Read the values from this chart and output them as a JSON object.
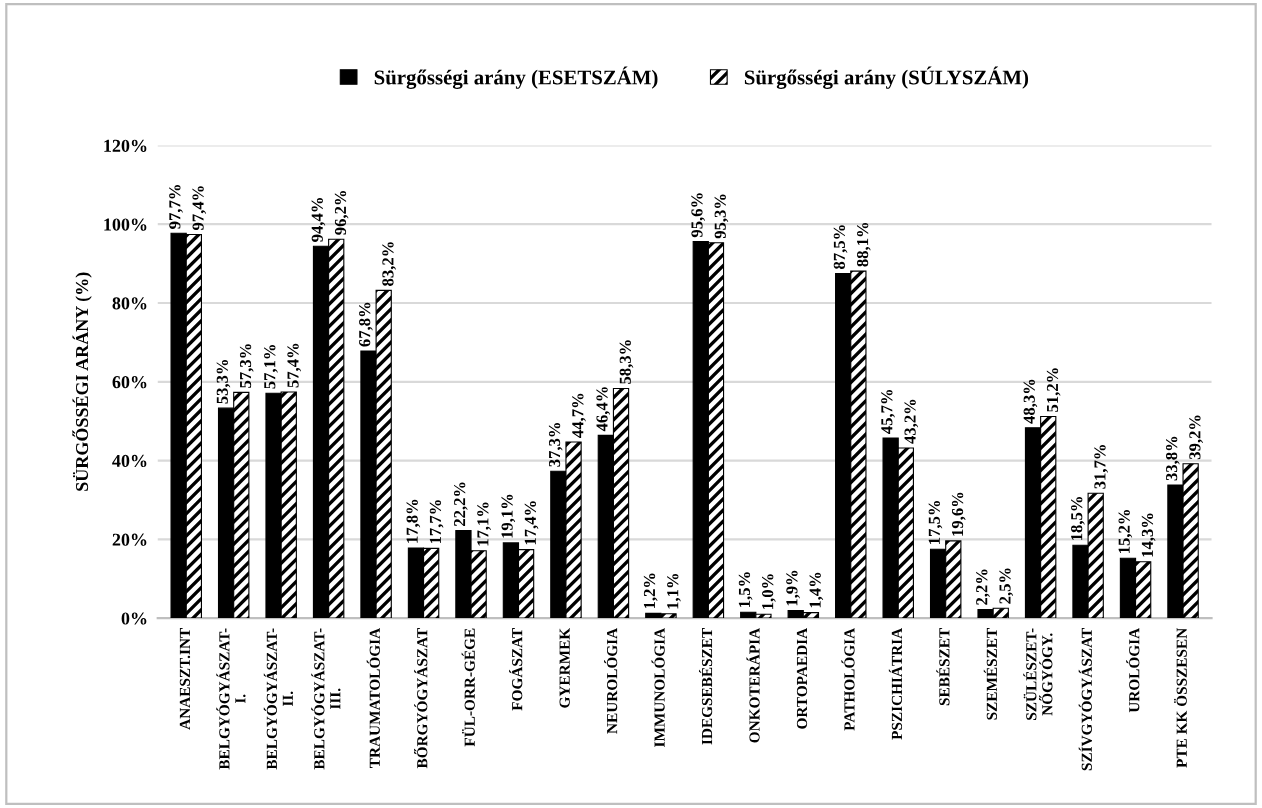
{
  "chart_data": {
    "type": "bar",
    "ylabel": "SÜRGŐSSÉGI ARÁNY (%)",
    "categories": [
      "ANAESZT.INT",
      "BELGYÓGYÁSZAT-\nI.",
      "BELGYÓGYÁSZAT-\nII.",
      "BELGYÓGYÁSZAT-\nIII.",
      "TRAUMATOLÓGIA",
      "BŐRGYÓGYÁSZAT",
      "FÜL-ORR-GÉGE",
      "FOGÁSZAT",
      "GYERMEK",
      "NEUROLÓGIA",
      "IMMUNOLÓGIA",
      "IDEGSEBÉSZET",
      "ONKOTERÁPIA",
      "ORTOPAEDIA",
      "PATHOLÓGIA",
      "PSZICHIÁTRIA",
      "SEBÉSZET",
      "SZEMÉSZET",
      "SZÜLÉSZET-\nNŐGYÓGY.",
      "SZÍVGYÓGYÁSZAT",
      "UROLÓGIA",
      "PTE KK ÖSSZESEN"
    ],
    "series": [
      {
        "name": "Sürgősségi arány (ESETSZÁM)",
        "color": "#000000",
        "values": [
          97.7,
          53.3,
          57.1,
          94.4,
          67.8,
          17.8,
          22.2,
          19.1,
          37.3,
          46.4,
          1.2,
          95.6,
          1.5,
          1.9,
          87.5,
          45.7,
          17.5,
          2.2,
          48.3,
          18.5,
          15.2,
          33.8
        ],
        "value_labels": [
          "97,7%",
          "53,3%",
          "57,1%",
          "94,4%",
          "67,8%",
          "17,8%",
          "22,2%",
          "19,1%",
          "37,3%",
          "46,4%",
          "1,2%",
          "95,6%",
          "1,5%",
          "1,9%",
          "87,5%",
          "45,7%",
          "17,5%",
          "2,2%",
          "48,3%",
          "18,5%",
          "15,2%",
          "33,8%"
        ]
      },
      {
        "name": "Sürgősségi arány (SÚLYSZÁM)",
        "color": "#000000",
        "values": [
          97.4,
          57.3,
          57.4,
          96.2,
          83.2,
          17.7,
          17.1,
          17.4,
          44.7,
          58.3,
          1.1,
          95.3,
          1.0,
          1.4,
          88.1,
          43.2,
          19.6,
          2.5,
          51.2,
          31.7,
          14.3,
          39.2
        ],
        "value_labels": [
          "97,4%",
          "57,3%",
          "57,4%",
          "96,2%",
          "83,2%",
          "17,7%",
          "17,1%",
          "17,4%",
          "44,7%",
          "58,3%",
          "1,1%",
          "95,3%",
          "1,0%",
          "1,4%",
          "88,1%",
          "43,2%",
          "19,6%",
          "2,5%",
          "51,2%",
          "31,7%",
          "14,3%",
          "39,2%"
        ]
      }
    ],
    "ylim": [
      0,
      120
    ],
    "yticks": [
      {
        "value": 0,
        "label": "0%"
      },
      {
        "value": 20,
        "label": "20%"
      },
      {
        "value": 40,
        "label": "40%"
      },
      {
        "value": 60,
        "label": "60%"
      },
      {
        "value": 80,
        "label": "80%"
      },
      {
        "value": 100,
        "label": "100%"
      },
      {
        "value": 120,
        "label": "120%"
      }
    ],
    "grid": "y",
    "legend": "top"
  }
}
